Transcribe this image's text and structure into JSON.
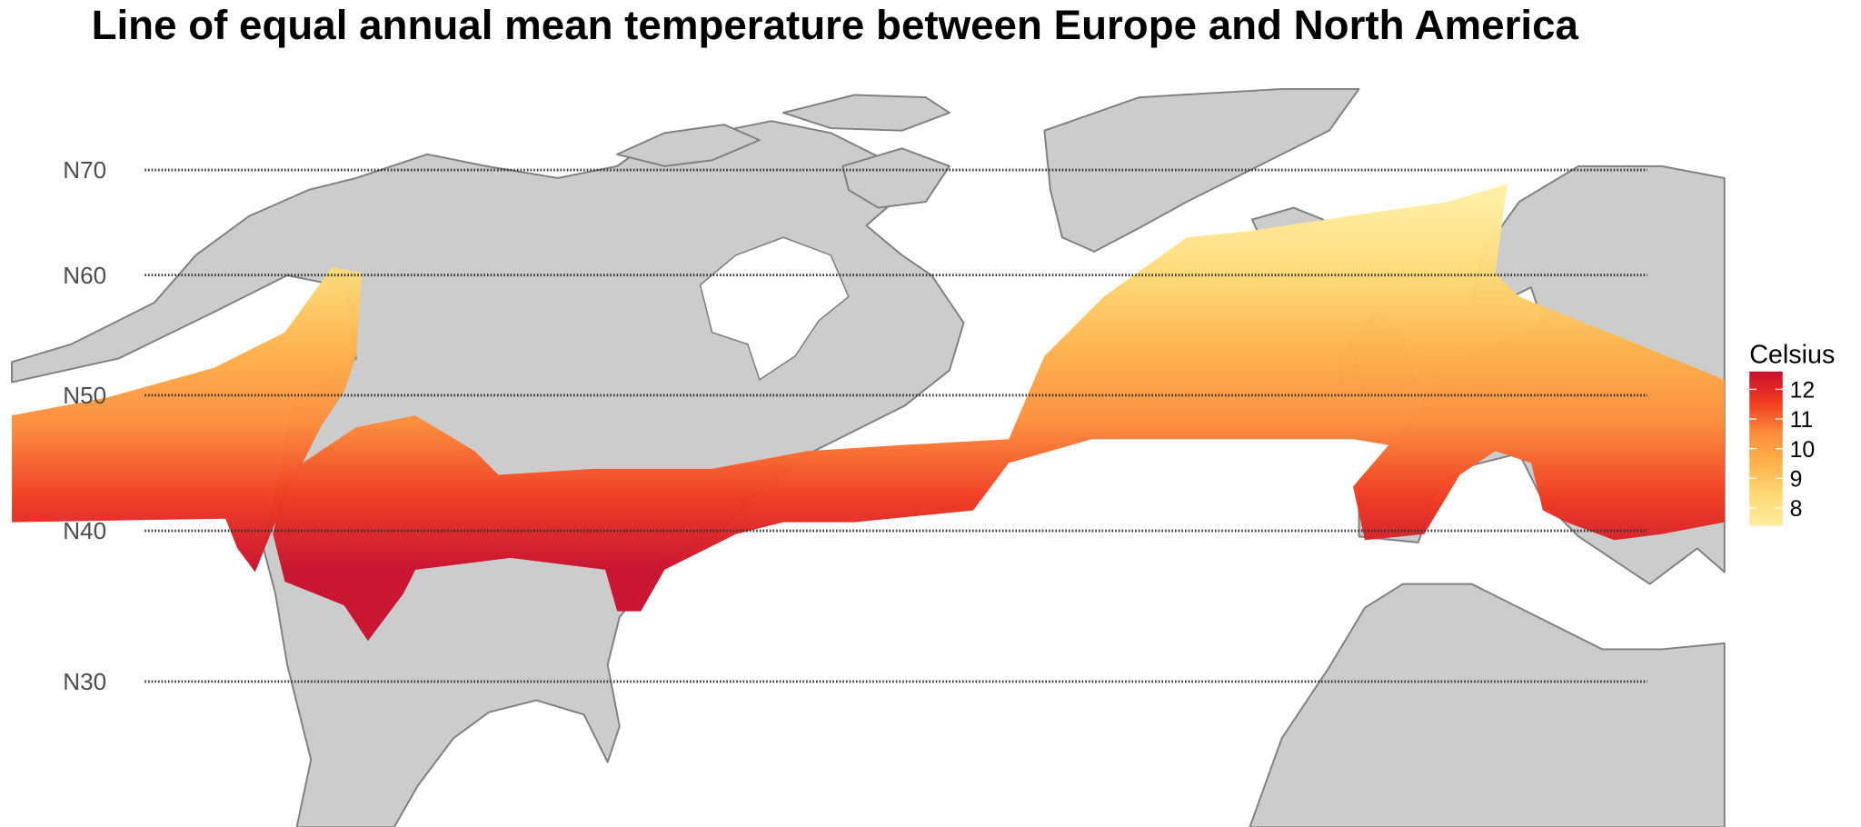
{
  "title": "Line of equal annual mean temperature between Europe and North America",
  "latitudes": [
    {
      "value": 70,
      "label": "N70"
    },
    {
      "value": 60,
      "label": "N60"
    },
    {
      "value": 50,
      "label": "N50"
    },
    {
      "value": 40,
      "label": "N40"
    },
    {
      "value": 30,
      "label": "N30"
    }
  ],
  "legend": {
    "title": "Celsius",
    "limits": [
      7.4,
      12.6
    ],
    "ticks": [
      12,
      11,
      10,
      9,
      8
    ],
    "colors": [
      "#ffeda0",
      "#fed976",
      "#feb24c",
      "#fd8d3c",
      "#f03b20",
      "#c8102e"
    ]
  }
}
